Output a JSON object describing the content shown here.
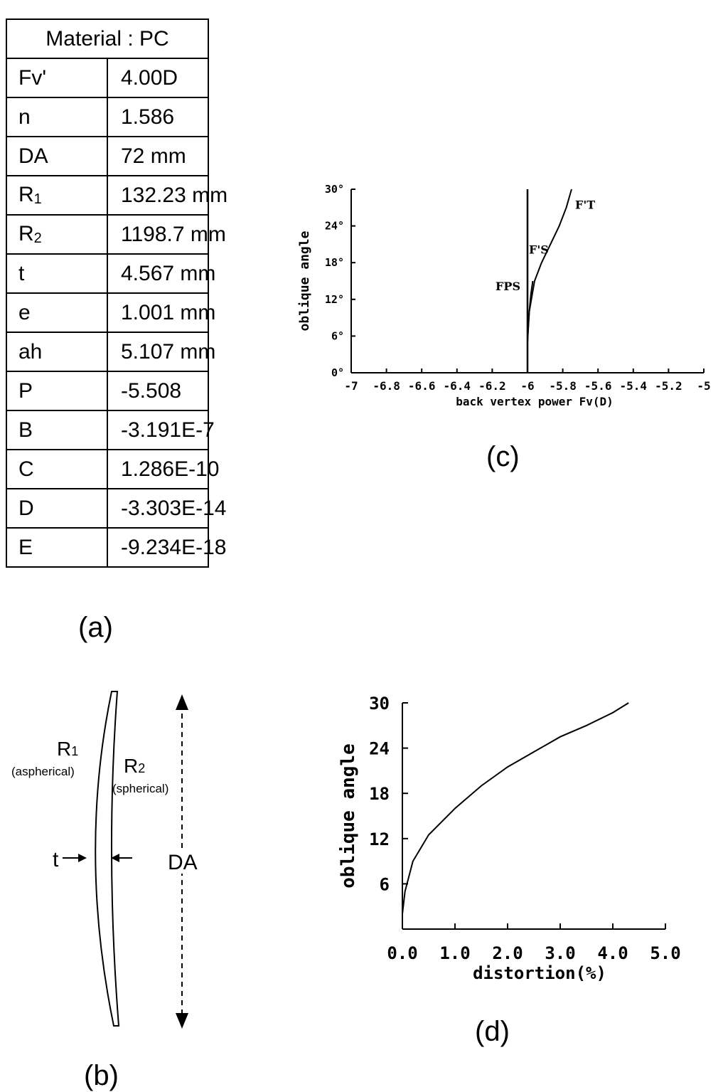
{
  "table": {
    "header": "Material  :  PC",
    "rows": [
      {
        "sym": "Fv'",
        "sub": "",
        "value": "4.00D"
      },
      {
        "sym": "n",
        "sub": "",
        "value": "1.586"
      },
      {
        "sym": "DA",
        "sub": "",
        "value": "72  mm"
      },
      {
        "sym": "R",
        "sub": "1",
        "value": "132.23 mm"
      },
      {
        "sym": "R",
        "sub": "2",
        "value": "1198.7 mm"
      },
      {
        "sym": "t",
        "sub": "",
        "value": "4.567 mm"
      },
      {
        "sym": "e",
        "sub": "",
        "value": "1.001  mm"
      },
      {
        "sym": "ah",
        "sub": "",
        "value": "5.107  mm"
      },
      {
        "sym": "P",
        "sub": "",
        "value": "-5.508"
      },
      {
        "sym": "B",
        "sub": "",
        "value": "-3.191E-7"
      },
      {
        "sym": "C",
        "sub": "",
        "value": "1.286E-10"
      },
      {
        "sym": "D",
        "sub": "",
        "value": "-3.303E-14"
      },
      {
        "sym": "E",
        "sub": "",
        "value": "-9.234E-18"
      }
    ]
  },
  "captions": {
    "a": "(a)",
    "b": "(b)",
    "c": "(c)",
    "d": "(d)"
  },
  "lens": {
    "r1": "R",
    "r1_sub": "1",
    "r1_note": "(aspherical)",
    "r2": "R",
    "r2_sub": "2",
    "r2_note": "(spherical)",
    "t_label": "t",
    "da_label": "DA"
  },
  "chart_data": [
    {
      "type": "line",
      "title": "",
      "xlabel": "back vertex power Fv(D)",
      "ylabel": "oblique angle",
      "xlim": [
        -7,
        -5
      ],
      "ylim": [
        0,
        30
      ],
      "x_ticks": [
        "-7",
        "-6.8",
        "-6.6",
        "-6.4",
        "-6.2",
        "-6",
        "-5.8",
        "-5.6",
        "-5.4",
        "-5.2",
        "-5"
      ],
      "y_ticks": [
        "0°",
        "6°",
        "12°",
        "18°",
        "24°",
        "30°"
      ],
      "series": [
        {
          "name": "FPS",
          "x": [
            -6.0,
            -6.0
          ],
          "y": [
            0,
            30
          ]
        },
        {
          "name": "F'T",
          "x": [
            -6.0,
            -5.99,
            -5.96,
            -5.92,
            -5.87,
            -5.82,
            -5.78,
            -5.75
          ],
          "y": [
            5,
            10,
            15,
            18,
            21,
            24,
            27,
            30
          ]
        },
        {
          "name": "F'S",
          "x": [
            -6.0,
            -5.995,
            -5.99,
            -5.98,
            -5.97
          ],
          "y": [
            5,
            8,
            10,
            13,
            15
          ]
        }
      ],
      "annotations": [
        "FPS",
        "F'S",
        "F'T"
      ]
    },
    {
      "type": "line",
      "title": "",
      "xlabel": "distortion(%)",
      "ylabel": "oblique angle",
      "xlim": [
        0,
        5
      ],
      "ylim": [
        0,
        30
      ],
      "x_ticks": [
        "0.0",
        "1.0",
        "2.0",
        "3.0",
        "4.0",
        "5.0"
      ],
      "y_ticks": [
        "6",
        "12",
        "18",
        "24",
        "30"
      ],
      "series": [
        {
          "name": "",
          "x": [
            0.0,
            0.05,
            0.2,
            0.5,
            1.0,
            1.5,
            2.0,
            2.5,
            3.0,
            3.5,
            4.0,
            4.3
          ],
          "y": [
            2,
            5,
            9,
            12.5,
            16,
            19,
            21.5,
            23.5,
            25.5,
            27,
            28.7,
            30
          ]
        }
      ]
    }
  ]
}
